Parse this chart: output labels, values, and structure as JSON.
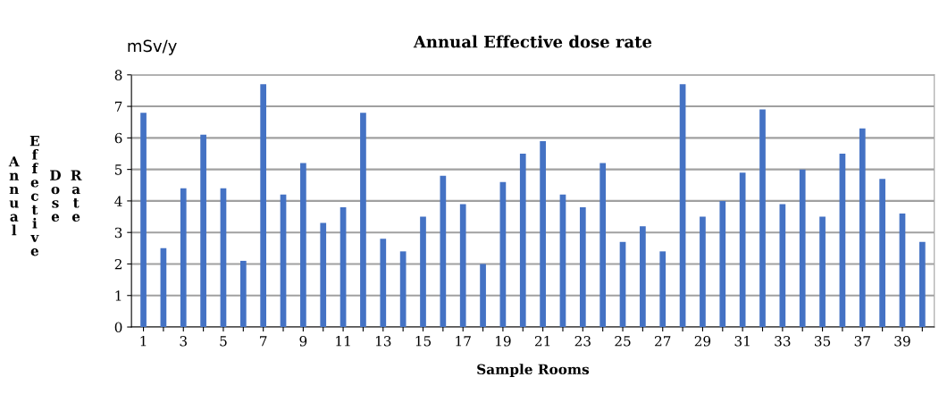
{
  "chart_data": {
    "type": "bar",
    "title": "Annual Effective dose rate",
    "xlabel": "Sample Rooms",
    "ylabel": "Annual Effective Dose Rate",
    "annotations": [
      "mSv/y"
    ],
    "categories": [
      "1",
      null,
      "3",
      null,
      "5",
      null,
      "7",
      null,
      "9",
      null,
      "11",
      null,
      "13",
      null,
      "15",
      null,
      "17",
      null,
      "19",
      null,
      "21",
      null,
      "23",
      null,
      "25",
      null,
      "27",
      null,
      "29",
      null,
      "31",
      null,
      "33",
      null,
      "35",
      null,
      "37",
      null,
      "39",
      null
    ],
    "values": [
      6.8,
      2.5,
      4.4,
      6.1,
      4.4,
      2.1,
      7.7,
      4.2,
      5.2,
      3.3,
      3.8,
      6.8,
      2.8,
      2.4,
      3.5,
      4.8,
      3.9,
      2.0,
      4.6,
      5.5,
      5.9,
      4.2,
      3.8,
      5.2,
      2.7,
      3.2,
      2.4,
      7.7,
      3.5,
      4.0,
      4.9,
      6.9,
      3.9,
      5.0,
      3.5,
      5.5,
      6.3,
      4.7,
      3.6,
      2.7
    ],
    "color": "#4472c4",
    "ylim": [
      0,
      8
    ],
    "yticks": [
      0,
      1,
      2,
      3,
      4,
      5,
      6,
      7,
      8
    ],
    "grid": "y"
  }
}
